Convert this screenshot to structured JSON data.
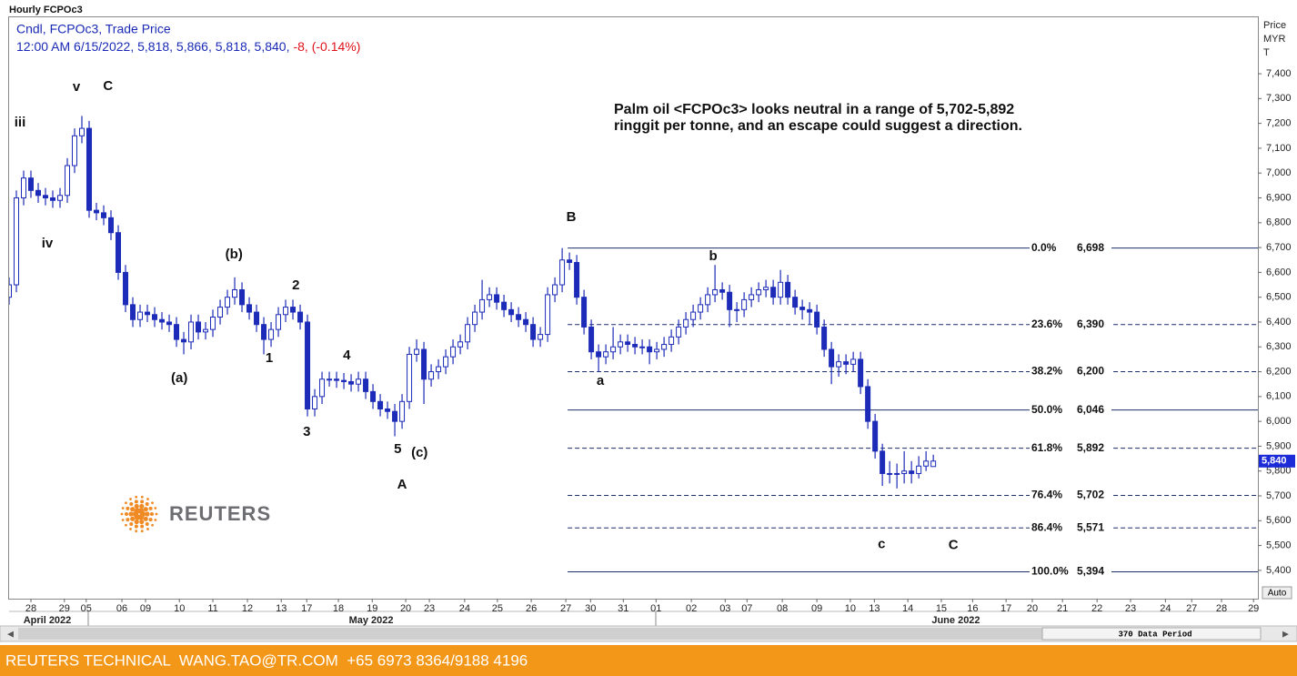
{
  "header": {
    "title": "Hourly FCPOc3",
    "line1": "Cndl, FCPOc3, Trade Price",
    "line2": "12:00 AM 6/15/2022, 5,818, 5,866, 5,818, 5,840,",
    "change": "-8, (-0.14%)"
  },
  "footer": "REUTERS TECHNICAL  WANG.TAO@TR.COM  +65 6973 8364/9188 4196",
  "logo": "REUTERS",
  "scroll_label": "370 Data Period",
  "auto_button": "Auto",
  "chart_data": {
    "type": "candlestick",
    "color": "#1c2bb8",
    "axis_label": [
      "Price",
      "MYR",
      "T"
    ],
    "last_value": 5840,
    "last_label": "5,840",
    "note": [
      "Palm oil <FCPOc3> looks neutral in a range of 5,702-5,892",
      "ringgit per tonne, and an escape could suggest a direction."
    ],
    "xlim": [
      0,
      171.6
    ],
    "ylim": [
      5286,
      7631
    ],
    "yticks": [
      {
        "value": 5400,
        "label": "5,400"
      },
      {
        "value": 5500,
        "label": "5,500"
      },
      {
        "value": 5600,
        "label": "5,600"
      },
      {
        "value": 5700,
        "label": "5,700"
      },
      {
        "value": 5800,
        "label": "5,800"
      },
      {
        "value": 5900,
        "label": "5,900"
      },
      {
        "value": 6000,
        "label": "6,000"
      },
      {
        "value": 6100,
        "label": "6,100"
      },
      {
        "value": 6200,
        "label": "6,200"
      },
      {
        "value": 6300,
        "label": "6,300"
      },
      {
        "value": 6400,
        "label": "6,400"
      },
      {
        "value": 6500,
        "label": "6,500"
      },
      {
        "value": 6600,
        "label": "6,600"
      },
      {
        "value": 6700,
        "label": "6,700"
      },
      {
        "value": 6800,
        "label": "6,800"
      },
      {
        "value": 6900,
        "label": "6,900"
      },
      {
        "value": 7000,
        "label": "7,000"
      },
      {
        "value": 7100,
        "label": "7,100"
      },
      {
        "value": 7200,
        "label": "7,200"
      },
      {
        "value": 7300,
        "label": "7,300"
      },
      {
        "value": 7400,
        "label": "7,400"
      }
    ],
    "xticks": [
      {
        "value": 3,
        "label": "28"
      },
      {
        "value": 7.6,
        "label": "29"
      },
      {
        "value": 10.6,
        "label": "05"
      },
      {
        "value": 15.5,
        "label": "06"
      },
      {
        "value": 18.75,
        "label": "09"
      },
      {
        "value": 23.4,
        "label": "10"
      },
      {
        "value": 28,
        "label": "11"
      },
      {
        "value": 32.75,
        "label": "12"
      },
      {
        "value": 37.4,
        "label": "13"
      },
      {
        "value": 40.9,
        "label": "17"
      },
      {
        "value": 45.25,
        "label": "18"
      },
      {
        "value": 49.9,
        "label": "19"
      },
      {
        "value": 54.5,
        "label": "20"
      },
      {
        "value": 57.75,
        "label": "23"
      },
      {
        "value": 62.6,
        "label": "24"
      },
      {
        "value": 67.1,
        "label": "25"
      },
      {
        "value": 71.75,
        "label": "26"
      },
      {
        "value": 76.5,
        "label": "27"
      },
      {
        "value": 79.9,
        "label": "30"
      },
      {
        "value": 84.4,
        "label": "31"
      },
      {
        "value": 88.9,
        "label": "01"
      },
      {
        "value": 93.75,
        "label": "02"
      },
      {
        "value": 98.4,
        "label": "03"
      },
      {
        "value": 101.4,
        "label": "07"
      },
      {
        "value": 106.25,
        "label": "08"
      },
      {
        "value": 111,
        "label": "09"
      },
      {
        "value": 115.6,
        "label": "10"
      },
      {
        "value": 118.9,
        "label": "13"
      },
      {
        "value": 123.5,
        "label": "14"
      },
      {
        "value": 128.1,
        "label": "15"
      },
      {
        "value": 132.4,
        "label": "16"
      },
      {
        "value": 137,
        "label": "17"
      },
      {
        "value": 140.6,
        "label": "20"
      },
      {
        "value": 144.75,
        "label": "21"
      },
      {
        "value": 149.5,
        "label": "22"
      },
      {
        "value": 154.1,
        "label": "23"
      },
      {
        "value": 158.9,
        "label": "24"
      },
      {
        "value": 162.5,
        "label": "27"
      },
      {
        "value": 166.6,
        "label": "28"
      },
      {
        "value": 171,
        "label": "29"
      }
    ],
    "months": [
      {
        "label": "April 2022",
        "x": 5.25
      },
      {
        "label": "May 2022",
        "x": 49.75
      },
      {
        "label": "June 2022",
        "x": 130.1
      }
    ],
    "open": [
      6500,
      6550,
      6900,
      6980,
      6930,
      6910,
      6900,
      6890,
      6910,
      7030,
      7150,
      7180,
      6850,
      6840,
      6820,
      6760,
      6600,
      6470,
      6410,
      6440,
      6430,
      6410,
      6400,
      6390,
      6330,
      6320,
      6400,
      6360,
      6370,
      6420,
      6460,
      6500,
      6530,
      6470,
      6440,
      6390,
      6330,
      6370,
      6430,
      6460,
      6440,
      6400,
      6050,
      6100,
      6170,
      6170,
      6165,
      6160,
      6150,
      6170,
      6120,
      6080,
      6050,
      6040,
      6000,
      6080,
      6270,
      6290,
      6170,
      6200,
      6220,
      6260,
      6300,
      6320,
      6390,
      6440,
      6490,
      6510,
      6480,
      6450,
      6430,
      6410,
      6390,
      6330,
      6350,
      6510,
      6550,
      6650,
      6640,
      6500,
      6380,
      6280,
      6260,
      6280,
      6300,
      6320,
      6310,
      6300,
      6300,
      6280,
      6290,
      6310,
      6340,
      6380,
      6410,
      6440,
      6470,
      6510,
      6530,
      6520,
      6450,
      6450,
      6490,
      6510,
      6530,
      6540,
      6500,
      6560,
      6500,
      6460,
      6450,
      6440,
      6380,
      6290,
      6220,
      6240,
      6230,
      6250,
      6140,
      6000,
      5880,
      5790,
      5790,
      5790,
      5800,
      5790,
      5820,
      5818
    ],
    "high": [
      6580,
      6930,
      7010,
      7010,
      6960,
      6940,
      6930,
      6940,
      7060,
      7180,
      7230,
      7210,
      6880,
      6870,
      6850,
      6790,
      6630,
      6500,
      6470,
      6470,
      6460,
      6440,
      6430,
      6420,
      6360,
      6430,
      6430,
      6400,
      6450,
      6490,
      6530,
      6580,
      6560,
      6500,
      6470,
      6420,
      6400,
      6460,
      6490,
      6490,
      6470,
      6430,
      6130,
      6200,
      6200,
      6200,
      6195,
      6190,
      6200,
      6200,
      6150,
      6110,
      6080,
      6070,
      6110,
      6300,
      6330,
      6320,
      6230,
      6250,
      6290,
      6330,
      6350,
      6420,
      6470,
      6570,
      6540,
      6540,
      6510,
      6480,
      6460,
      6440,
      6420,
      6380,
      6540,
      6580,
      6698,
      6680,
      6670,
      6530,
      6410,
      6310,
      6310,
      6380,
      6350,
      6350,
      6340,
      6330,
      6330,
      6320,
      6340,
      6370,
      6410,
      6440,
      6470,
      6500,
      6540,
      6630,
      6560,
      6550,
      6480,
      6520,
      6540,
      6560,
      6570,
      6570,
      6610,
      6590,
      6530,
      6490,
      6480,
      6470,
      6410,
      6320,
      6270,
      6270,
      6280,
      6280,
      6170,
      6030,
      5910,
      5840,
      5830,
      5880,
      5840,
      5860,
      5880,
      5866
    ],
    "low": [
      6470,
      6520,
      6870,
      6900,
      6880,
      6870,
      6860,
      6860,
      6880,
      7000,
      7120,
      6820,
      6810,
      6790,
      6730,
      6570,
      6440,
      6380,
      6380,
      6400,
      6380,
      6370,
      6360,
      6300,
      6270,
      6290,
      6330,
      6330,
      6340,
      6390,
      6430,
      6470,
      6440,
      6410,
      6360,
      6270,
      6300,
      6340,
      6400,
      6410,
      6370,
      6020,
      6020,
      6070,
      6140,
      6135,
      6130,
      6120,
      6120,
      6090,
      6050,
      6020,
      6010,
      5940,
      5970,
      6050,
      6240,
      6070,
      6140,
      6170,
      6190,
      6230,
      6270,
      6290,
      6360,
      6410,
      6460,
      6450,
      6420,
      6400,
      6380,
      6360,
      6300,
      6300,
      6320,
      6480,
      6520,
      6610,
      6470,
      6350,
      6250,
      6200,
      6230,
      6250,
      6270,
      6280,
      6270,
      6270,
      6230,
      6250,
      6260,
      6280,
      6310,
      6350,
      6380,
      6410,
      6440,
      6480,
      6490,
      6380,
      6400,
      6420,
      6460,
      6480,
      6500,
      6470,
      6470,
      6470,
      6430,
      6410,
      6390,
      6350,
      6260,
      6150,
      6180,
      6190,
      6200,
      6110,
      5970,
      5850,
      5740,
      5750,
      5730,
      5750,
      5750,
      5770,
      5800,
      5818
    ],
    "close": [
      6550,
      6900,
      6980,
      6930,
      6910,
      6900,
      6890,
      6910,
      7030,
      7150,
      7180,
      6850,
      6840,
      6820,
      6760,
      6600,
      6470,
      6410,
      6440,
      6430,
      6410,
      6400,
      6390,
      6330,
      6320,
      6400,
      6360,
      6370,
      6420,
      6460,
      6500,
      6530,
      6470,
      6440,
      6390,
      6330,
      6370,
      6430,
      6460,
      6440,
      6400,
      6050,
      6100,
      6170,
      6170,
      6165,
      6160,
      6150,
      6170,
      6120,
      6080,
      6050,
      6040,
      6000,
      6080,
      6270,
      6290,
      6170,
      6200,
      6220,
      6260,
      6300,
      6320,
      6390,
      6440,
      6490,
      6510,
      6480,
      6450,
      6430,
      6410,
      6390,
      6330,
      6350,
      6510,
      6550,
      6650,
      6640,
      6500,
      6380,
      6280,
      6260,
      6280,
      6300,
      6320,
      6310,
      6300,
      6300,
      6280,
      6290,
      6310,
      6340,
      6380,
      6410,
      6440,
      6470,
      6510,
      6530,
      6520,
      6450,
      6450,
      6490,
      6510,
      6530,
      6540,
      6500,
      6560,
      6500,
      6460,
      6450,
      6440,
      6380,
      6290,
      6220,
      6240,
      6230,
      6250,
      6140,
      6000,
      5880,
      5790,
      5790,
      5790,
      5800,
      5790,
      5820,
      5840,
      5840
    ],
    "fib_start_x": 76.75,
    "fib": [
      {
        "level": "0.0%",
        "value": 6698,
        "label": "6,698",
        "dashed": false
      },
      {
        "level": "23.6%",
        "value": 6390,
        "label": "6,390",
        "dashed": true
      },
      {
        "level": "38.2%",
        "value": 6200,
        "label": "6,200",
        "dashed": true
      },
      {
        "level": "50.0%",
        "value": 6046,
        "label": "6,046",
        "dashed": false
      },
      {
        "level": "61.8%",
        "value": 5892,
        "label": "5,892",
        "dashed": true
      },
      {
        "level": "76.4%",
        "value": 5702,
        "label": "5,702",
        "dashed": true
      },
      {
        "level": "86.4%",
        "value": 5571,
        "label": "5,571",
        "dashed": true
      },
      {
        "level": "100.0%",
        "value": 5394,
        "label": "5,394",
        "dashed": false
      }
    ],
    "annotations": [
      {
        "text": "iii",
        "x": 1.5,
        "y": 7202
      },
      {
        "text": "v",
        "x": 9.25,
        "y": 7345
      },
      {
        "text": "C",
        "x": 13.6,
        "y": 7349
      },
      {
        "text": "iv",
        "x": 5.25,
        "y": 6715
      },
      {
        "text": "(b)",
        "x": 30.9,
        "y": 6671
      },
      {
        "text": "2",
        "x": 39.4,
        "y": 6547
      },
      {
        "text": "(a)",
        "x": 23.4,
        "y": 6173
      },
      {
        "text": "1",
        "x": 35.75,
        "y": 6253
      },
      {
        "text": "4",
        "x": 46.4,
        "y": 6264
      },
      {
        "text": "3",
        "x": 40.9,
        "y": 5957
      },
      {
        "text": "5",
        "x": 53.4,
        "y": 5887
      },
      {
        "text": "(c)",
        "x": 56.4,
        "y": 5873
      },
      {
        "text": "A",
        "x": 54,
        "y": 5744
      },
      {
        "text": "B",
        "x": 77.25,
        "y": 6821
      },
      {
        "text": "a",
        "x": 81.25,
        "y": 6162
      },
      {
        "text": "b",
        "x": 96.75,
        "y": 6664
      },
      {
        "text": "c",
        "x": 119.9,
        "y": 5503
      },
      {
        "text": "C",
        "x": 129.75,
        "y": 5500
      }
    ]
  }
}
